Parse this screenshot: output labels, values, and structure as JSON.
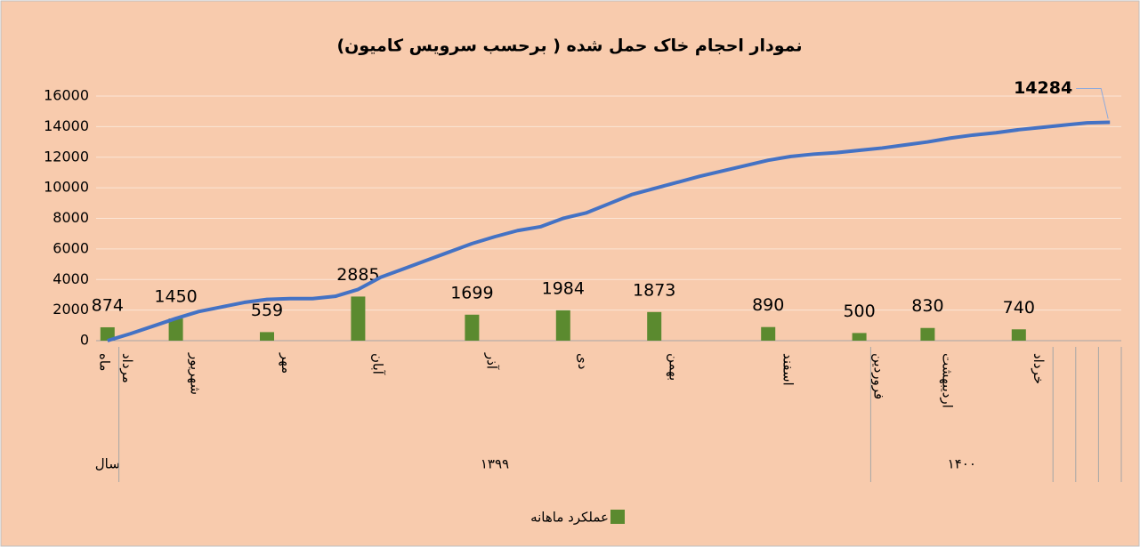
{
  "chart_data": {
    "type": "combo",
    "title": "نمودار احجام خاک حمل شده ( برحسب سرویس کامیون)",
    "categories": [
      "ماه",
      "مرداد",
      null,
      null,
      "شهریور",
      null,
      null,
      null,
      "مهر",
      null,
      null,
      null,
      "آبان",
      null,
      null,
      null,
      null,
      "آذر",
      null,
      null,
      null,
      "دی",
      null,
      null,
      null,
      "بهمن",
      null,
      null,
      null,
      null,
      "اسفند",
      null,
      null,
      null,
      "فروردین",
      null,
      null,
      "اردیبهشت",
      null,
      null,
      null,
      "خرداد",
      null,
      null,
      null
    ],
    "groups": [
      {
        "label": "سال",
        "start": 0,
        "end": 0
      },
      {
        "label": "۱۳۹۹",
        "start": 1,
        "end": 33
      },
      {
        "label": "۱۴۰۰",
        "start": 34,
        "end": 41
      },
      {
        "label": null,
        "start": 42,
        "end": 42
      },
      {
        "label": null,
        "start": 43,
        "end": 43
      },
      {
        "label": null,
        "start": 44,
        "end": 44
      }
    ],
    "series": [
      {
        "name": "عملکرد ماهانه",
        "type": "bar",
        "color": "#5b8a2f",
        "data_labels": true,
        "values": [
          874,
          null,
          null,
          1450,
          null,
          null,
          null,
          559,
          null,
          null,
          null,
          2885,
          null,
          null,
          null,
          null,
          1699,
          null,
          null,
          null,
          1984,
          null,
          null,
          null,
          1873,
          null,
          null,
          null,
          null,
          890,
          null,
          null,
          null,
          500,
          null,
          null,
          830,
          null,
          null,
          null,
          740,
          null,
          null,
          null,
          null
        ]
      },
      {
        "type": "line",
        "color": "#4472c4",
        "label_last": true,
        "values": [
          0,
          450,
          950,
          1450,
          1900,
          2200,
          2500,
          2700,
          2750,
          2750,
          2900,
          3350,
          4150,
          4700,
          5250,
          5800,
          6350,
          6800,
          7200,
          7450,
          8000,
          8350,
          8950,
          9550,
          9950,
          10350,
          10750,
          11100,
          11450,
          11800,
          12050,
          12200,
          12300,
          12450,
          12600,
          12800,
          13000,
          13250,
          13450,
          13600,
          13800,
          13950,
          14100,
          14250,
          14284
        ]
      }
    ],
    "ylim": [
      0,
      16000
    ],
    "yticks": [
      0,
      2000,
      4000,
      6000,
      8000,
      10000,
      12000,
      14000,
      16000
    ],
    "grid": true,
    "legend": "bottom"
  }
}
